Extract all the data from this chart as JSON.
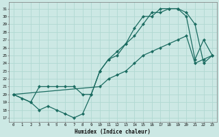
{
  "xlabel": "Humidex (Indice chaleur)",
  "bg_color": "#cce8e4",
  "grid_color": "#b0d8d2",
  "line_color": "#1a6b60",
  "xlim": [
    -0.5,
    23.5
  ],
  "ylim": [
    16.5,
    31.8
  ],
  "xticks": [
    0,
    1,
    2,
    3,
    4,
    5,
    6,
    7,
    8,
    9,
    10,
    11,
    12,
    13,
    14,
    15,
    16,
    17,
    18,
    19,
    20,
    21,
    22,
    23
  ],
  "yticks": [
    17,
    18,
    19,
    20,
    21,
    22,
    23,
    24,
    25,
    26,
    27,
    28,
    29,
    30,
    31
  ],
  "line1_x": [
    0,
    1,
    2,
    3,
    4,
    5,
    6,
    7,
    8,
    9,
    10,
    11,
    12,
    13,
    14,
    15,
    16,
    17,
    18,
    19,
    20,
    21,
    22,
    23
  ],
  "line1_y": [
    20.0,
    19.5,
    19.0,
    18.0,
    18.5,
    18.0,
    17.5,
    17.0,
    17.5,
    20.0,
    23.0,
    24.5,
    25.0,
    26.5,
    28.5,
    30.0,
    30.0,
    31.0,
    31.0,
    31.0,
    30.5,
    29.0,
    24.0,
    25.0
  ],
  "line2_x": [
    0,
    2,
    3,
    4,
    5,
    6,
    7,
    8,
    9,
    10,
    11,
    12,
    13,
    14,
    15,
    16,
    17,
    18,
    19,
    20,
    21,
    22,
    23
  ],
  "line2_y": [
    20.0,
    19.0,
    21.0,
    21.0,
    21.0,
    21.0,
    21.0,
    20.0,
    20.0,
    23.0,
    24.5,
    25.5,
    26.5,
    27.5,
    29.0,
    30.5,
    30.5,
    31.0,
    31.0,
    30.0,
    24.5,
    27.0,
    25.0
  ],
  "line3_x": [
    0,
    10,
    11,
    12,
    13,
    14,
    15,
    16,
    17,
    18,
    19,
    20,
    21,
    22,
    23
  ],
  "line3_y": [
    20.0,
    21.0,
    22.0,
    22.5,
    23.0,
    24.0,
    25.0,
    25.5,
    26.0,
    26.5,
    27.0,
    27.5,
    24.0,
    24.5,
    25.0
  ]
}
